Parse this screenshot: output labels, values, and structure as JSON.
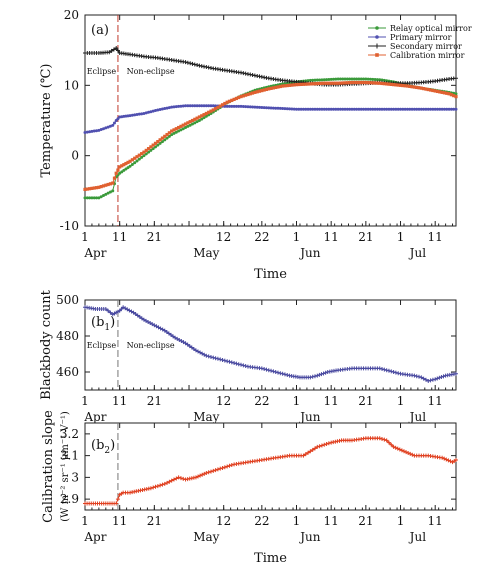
{
  "chart_data": [
    {
      "type": "line",
      "panel_label": "(a)",
      "ylabel": "Temperature (℃)",
      "xlabel": "Time",
      "ylim": [
        -10,
        20
      ],
      "yticks": [
        -10,
        0,
        10,
        20
      ],
      "xlim": [
        1,
        108
      ],
      "xticks": [
        1,
        11,
        21,
        31,
        41,
        52,
        62,
        72,
        82,
        92,
        102
      ],
      "xtick_labels": [
        "1",
        "11",
        "21",
        "",
        "12",
        "22",
        "1",
        "11",
        "21",
        "1",
        "11"
      ],
      "month_labels": [
        {
          "text": "Apr",
          "x": 4
        },
        {
          "text": "May",
          "x": 36
        },
        {
          "text": "Jun",
          "x": 66
        },
        {
          "text": "Jul",
          "x": 97
        }
      ],
      "eclipse_line_x": 10.5,
      "region_labels": [
        {
          "text": "Eclipse",
          "x": 1.5
        },
        {
          "text": "Non-eclipse",
          "x": 13
        }
      ],
      "series": [
        {
          "name": "Relay optical mirror",
          "color": "#3a9a3a",
          "marker": "dot",
          "x": [
            1,
            5,
            9,
            10,
            11,
            14,
            18,
            22,
            26,
            30,
            34,
            38,
            42,
            46,
            50,
            54,
            58,
            62,
            66,
            70,
            74,
            78,
            82,
            86,
            90,
            94,
            98,
            102,
            106,
            108
          ],
          "y": [
            -6,
            -6,
            -5,
            -3,
            -2.5,
            -1.5,
            0,
            1.5,
            3,
            4,
            5,
            6.2,
            7.5,
            8.5,
            9.3,
            9.8,
            10.2,
            10.5,
            10.7,
            10.8,
            10.9,
            10.9,
            10.9,
            10.8,
            10.5,
            10,
            9.6,
            9.3,
            9,
            8.8
          ]
        },
        {
          "name": "Primary mirror",
          "color": "#5050b0",
          "marker": "dot",
          "x": [
            1,
            5,
            9,
            10,
            11,
            14,
            18,
            22,
            26,
            30,
            34,
            38,
            42,
            46,
            50,
            54,
            58,
            62,
            66,
            70,
            74,
            78,
            82,
            86,
            90,
            94,
            98,
            102,
            106,
            108
          ],
          "y": [
            3.3,
            3.6,
            4.3,
            5,
            5.5,
            5.7,
            6,
            6.5,
            6.9,
            7.1,
            7.1,
            7.1,
            7,
            7,
            6.9,
            6.8,
            6.7,
            6.6,
            6.6,
            6.6,
            6.6,
            6.6,
            6.6,
            6.6,
            6.6,
            6.6,
            6.6,
            6.6,
            6.6,
            6.6
          ]
        },
        {
          "name": "Secondary mirror",
          "color": "#222222",
          "marker": "plus",
          "x": [
            1,
            5,
            8,
            10,
            11,
            14,
            18,
            22,
            26,
            30,
            34,
            38,
            42,
            46,
            50,
            54,
            58,
            62,
            66,
            70,
            74,
            78,
            82,
            86,
            90,
            94,
            98,
            102,
            106,
            108
          ],
          "y": [
            14.6,
            14.6,
            14.7,
            15.3,
            14.6,
            14.4,
            14.1,
            13.9,
            13.6,
            13.3,
            12.8,
            12.4,
            12.1,
            11.8,
            11.4,
            11,
            10.7,
            10.5,
            10.3,
            10.1,
            10.1,
            10.2,
            10.3,
            10.4,
            10.3,
            10.3,
            10.4,
            10.6,
            10.9,
            11
          ]
        },
        {
          "name": "Calibration mirror",
          "color": "#e06030",
          "marker": "square",
          "x": [
            1,
            5,
            9,
            10,
            11,
            14,
            18,
            22,
            26,
            30,
            34,
            38,
            42,
            46,
            50,
            54,
            58,
            62,
            66,
            70,
            74,
            78,
            82,
            86,
            90,
            94,
            98,
            102,
            106,
            108
          ],
          "y": [
            -4.8,
            -4.5,
            -3.9,
            -2.5,
            -1.6,
            -0.8,
            0.5,
            2,
            3.5,
            4.5,
            5.5,
            6.5,
            7.6,
            8.4,
            9,
            9.5,
            9.9,
            10.1,
            10.2,
            10.3,
            10.3,
            10.4,
            10.4,
            10.3,
            10.1,
            9.9,
            9.6,
            9.2,
            8.8,
            8.4
          ]
        }
      ]
    },
    {
      "type": "line",
      "panel_label": "(b",
      "panel_label_sub": "1",
      "panel_label_end": ")",
      "ylabel": "Blackbody count",
      "ylim": [
        450,
        500
      ],
      "yticks": [
        460,
        480,
        500
      ],
      "xlim": [
        1,
        108
      ],
      "xticks": [
        1,
        11,
        21,
        31,
        41,
        52,
        62,
        72,
        82,
        92,
        102
      ],
      "xtick_labels": [
        "1",
        "11",
        "21",
        "",
        "12",
        "22",
        "1",
        "11",
        "21",
        "1",
        "11"
      ],
      "month_labels": [
        {
          "text": "Apr",
          "x": 4
        },
        {
          "text": "May",
          "x": 36
        },
        {
          "text": "Jun",
          "x": 66
        },
        {
          "text": "Jul",
          "x": 97
        }
      ],
      "eclipse_line_x": 10.5,
      "region_labels": [
        {
          "text": "Eclipse",
          "x": 1.5
        },
        {
          "text": "Non-eclipse",
          "x": 13
        }
      ],
      "series": [
        {
          "name": "",
          "color": "#4a4aa0",
          "marker": "plus",
          "x": [
            1,
            4,
            7,
            9,
            10,
            11,
            12,
            15,
            18,
            21,
            24,
            27,
            30,
            33,
            36,
            40,
            44,
            48,
            52,
            56,
            60,
            63,
            66,
            68,
            71,
            74,
            78,
            82,
            86,
            88,
            92,
            96,
            98,
            100,
            102,
            105,
            108
          ],
          "y": [
            496,
            495,
            495,
            492,
            493,
            494,
            496,
            493,
            489,
            486,
            483,
            479,
            476,
            472,
            469,
            467,
            465,
            463,
            462,
            460,
            458,
            457,
            457,
            458,
            460,
            461,
            462,
            462,
            462,
            461,
            459,
            458,
            457,
            455,
            456,
            458,
            459
          ]
        }
      ]
    },
    {
      "type": "line",
      "panel_label": "(b",
      "panel_label_sub": "2",
      "panel_label_end": ")",
      "ylabel": "Calibration slope",
      "ylabel_units": "(W m⁻² sr⁻¹ μm⁻¹ V⁻¹)",
      "xlabel": "Time",
      "ylim": [
        2.85,
        3.25
      ],
      "yticks": [
        2.9,
        3.0,
        3.1,
        3.2
      ],
      "xlim": [
        1,
        108
      ],
      "xticks": [
        1,
        11,
        21,
        31,
        41,
        52,
        62,
        72,
        82,
        92,
        102
      ],
      "xtick_labels": [
        "1",
        "11",
        "21",
        "",
        "12",
        "22",
        "1",
        "11",
        "21",
        "1",
        "11"
      ],
      "month_labels": [
        {
          "text": "Apr",
          "x": 4
        },
        {
          "text": "May",
          "x": 36
        },
        {
          "text": "Jun",
          "x": 66
        },
        {
          "text": "Jul",
          "x": 97
        }
      ],
      "eclipse_line_x": 10.5,
      "series": [
        {
          "name": "",
          "color": "#e04020",
          "marker": "plus",
          "x": [
            1,
            4,
            7,
            10,
            11,
            12,
            14,
            17,
            20,
            24,
            28,
            30,
            33,
            36,
            40,
            44,
            48,
            52,
            56,
            60,
            64,
            66,
            68,
            70,
            72,
            75,
            78,
            82,
            86,
            88,
            90,
            93,
            96,
            100,
            104,
            107,
            108
          ],
          "y": [
            2.88,
            2.88,
            2.88,
            2.88,
            2.92,
            2.93,
            2.93,
            2.94,
            2.95,
            2.97,
            3.0,
            2.99,
            3.0,
            3.02,
            3.04,
            3.06,
            3.07,
            3.08,
            3.09,
            3.1,
            3.1,
            3.12,
            3.14,
            3.15,
            3.16,
            3.17,
            3.17,
            3.18,
            3.18,
            3.17,
            3.14,
            3.12,
            3.1,
            3.1,
            3.09,
            3.07,
            3.08
          ]
        }
      ]
    }
  ]
}
